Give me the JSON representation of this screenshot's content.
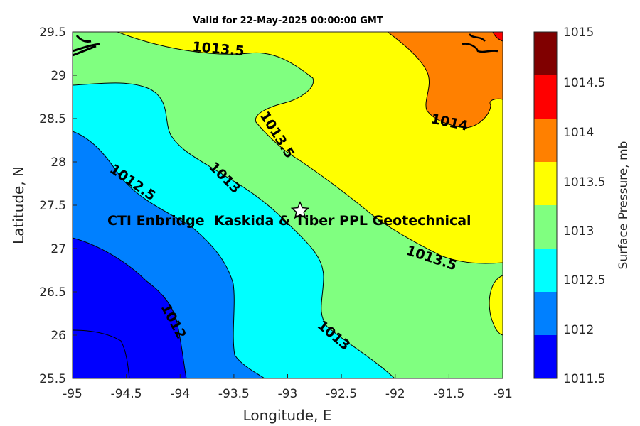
{
  "title": "Valid for 22-May-2025 00:00:00 GMT",
  "map": {
    "xlabel": "Longitude, E",
    "ylabel": "Latitude, N",
    "x_ticks": [
      "-95",
      "-94.5",
      "-94",
      "-93.5",
      "-93",
      "-92.5",
      "-92",
      "-91.5",
      "-91"
    ],
    "y_ticks": [
      "29.5",
      "29",
      "28.5",
      "28",
      "27.5",
      "27",
      "26.5",
      "26",
      "25.5"
    ],
    "xlim": [
      -95,
      -91
    ],
    "ylim": [
      25.5,
      29.5
    ],
    "site": {
      "name": "CTI Enbridge  Kaskida & Tiber PPL Geotechnical",
      "lon": -92.85,
      "lat": 27.43,
      "marker": "star-icon"
    },
    "contour_labels": [
      "1013.5",
      "1014",
      "1013.5",
      "1013",
      "1012.5",
      "1013.5",
      "1012",
      "1013"
    ]
  },
  "colorbar": {
    "title": "Surface Pressure, mb",
    "levels": [
      "1015",
      "1014.5",
      "1014",
      "1013.5",
      "1013",
      "1012.5",
      "1012",
      "1011.5"
    ],
    "colors": [
      "#800000",
      "#ff0000",
      "#ff8000",
      "#ffff00",
      "#80ff80",
      "#00ffff",
      "#0080ff",
      "#0000ff"
    ]
  }
}
